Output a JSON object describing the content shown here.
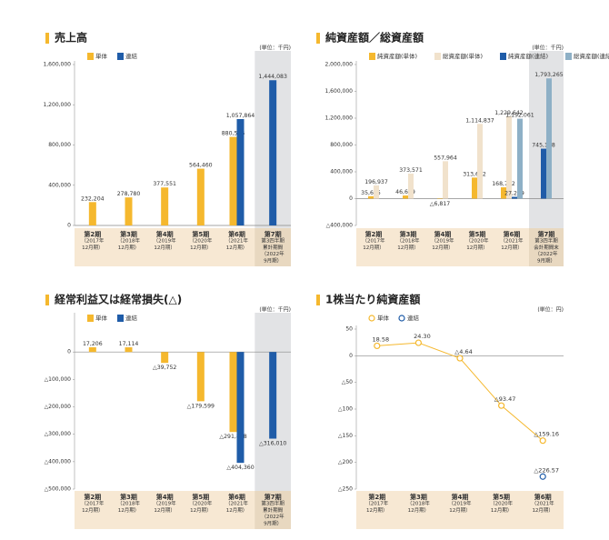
{
  "chart_data": [
    {
      "type": "bar",
      "title": "売上高",
      "unit": "(単位：千円)",
      "categories": [
        [
          "第2期",
          "（2017年",
          "12月期）"
        ],
        [
          "第3期",
          "（2018年",
          "12月期）"
        ],
        [
          "第4期",
          "（2019年",
          "12月期）"
        ],
        [
          "第5期",
          "（2020年",
          "12月期）"
        ],
        [
          "第6期",
          "（2021年",
          "12月期）"
        ],
        [
          "第7期",
          "第3四半期",
          "累計期間",
          "（2022年",
          "9月期）"
        ]
      ],
      "series": [
        {
          "name": "単体",
          "color": "#f5b82e",
          "values": [
            232204,
            278780,
            377551,
            564460,
            880506,
            null
          ],
          "value_labels": [
            "232,204",
            "278,780",
            "377,551",
            "564,460",
            "880,506",
            null
          ]
        },
        {
          "name": "連結",
          "color": "#1f5ca8",
          "values": [
            null,
            null,
            null,
            null,
            1057864,
            1444083
          ],
          "value_labels": [
            null,
            null,
            null,
            null,
            "1,057,864",
            "1,444,083"
          ]
        }
      ],
      "ylim": [
        0,
        1600000
      ],
      "yticks": [
        0,
        {
          "value": 400000,
          "label": "400,000"
        },
        {
          "value": 800000,
          "label": "800,000"
        },
        {
          "value": 1200000,
          "label": "1,200,000"
        },
        {
          "value": 1600000,
          "label": "1,600,000"
        }
      ],
      "highlight_category": 5
    },
    {
      "type": "bar",
      "title": "純資産額／総資産額",
      "unit": "(単位：千円)",
      "categories": [
        [
          "第2期",
          "（2017年",
          "12月期）"
        ],
        [
          "第3期",
          "（2018年",
          "12月期）"
        ],
        [
          "第4期",
          "（2019年",
          "12月期）"
        ],
        [
          "第5期",
          "（2020年",
          "12月期）"
        ],
        [
          "第6期",
          "（2021年",
          "12月期）"
        ],
        [
          "第7期",
          "第3四半期",
          "会計期間末",
          "（2022年",
          "9月期）"
        ]
      ],
      "series": [
        {
          "name": "純資産額(単体)",
          "color": "#f5b82e",
          "values": [
            35675,
            46659,
            -6817,
            313672,
            168702,
            null
          ],
          "value_labels": [
            "35,675",
            "46,659",
            "△6,817",
            "313,672",
            "168,702",
            null
          ]
        },
        {
          "name": "総資産額(単体)",
          "color": "#f1e2cc",
          "values": [
            196937,
            373571,
            557964,
            1114837,
            1229642,
            null
          ],
          "value_labels": [
            "196,937",
            "373,571",
            "557,964",
            "1,114,837",
            "1,229,642",
            null
          ]
        },
        {
          "name": "純資産額(連結)",
          "color": "#1f5ca8",
          "values": [
            null,
            null,
            null,
            null,
            27279,
            745178
          ],
          "value_labels": [
            null,
            null,
            null,
            null,
            "27,279",
            "745,178"
          ]
        },
        {
          "name": "総資産額(連結)",
          "color": "#8eb0c6",
          "values": [
            null,
            null,
            null,
            null,
            1192061,
            1793265
          ],
          "value_labels": [
            null,
            null,
            null,
            null,
            "1,192,061",
            "1,793,265"
          ]
        }
      ],
      "ylim": [
        -400000,
        2000000
      ],
      "yticks": [
        {
          "value": -400000,
          "label": "△400,000"
        },
        0,
        {
          "value": 400000,
          "label": "400,000"
        },
        {
          "value": 800000,
          "label": "800,000"
        },
        {
          "value": 1200000,
          "label": "1,200,000"
        },
        {
          "value": 1600000,
          "label": "1,600,000"
        },
        {
          "value": 2000000,
          "label": "2,000,000"
        }
      ],
      "highlight_category": 5
    },
    {
      "type": "bar",
      "title": "経常利益又は経常損失(△)",
      "unit": "(単位：千円)",
      "categories": [
        [
          "第2期",
          "（2017年",
          "12月期）"
        ],
        [
          "第3期",
          "（2018年",
          "12月期）"
        ],
        [
          "第4期",
          "（2019年",
          "12月期）"
        ],
        [
          "第5期",
          "（2020年",
          "12月期）"
        ],
        [
          "第6期",
          "（2021年",
          "12月期）"
        ],
        [
          "第7期",
          "第3四半期",
          "累計期間",
          "（2022年",
          "9月期）"
        ]
      ],
      "series": [
        {
          "name": "単体",
          "color": "#f5b82e",
          "values": [
            17206,
            17114,
            -39752,
            -179599,
            -291858,
            null
          ],
          "value_labels": [
            "17,206",
            "17,114",
            "△39,752",
            "△179,599",
            "△291,858",
            null
          ]
        },
        {
          "name": "連結",
          "color": "#1f5ca8",
          "values": [
            null,
            null,
            null,
            null,
            -404360,
            -316010
          ],
          "value_labels": [
            null,
            null,
            null,
            null,
            "△404,360",
            "△316,010"
          ]
        }
      ],
      "ylim": [
        -500000,
        130000
      ],
      "yticks": [
        {
          "value": -500000,
          "label": "△500,000"
        },
        {
          "value": -400000,
          "label": "△400,000"
        },
        {
          "value": -300000,
          "label": "△300,000"
        },
        {
          "value": -200000,
          "label": "△200,000"
        },
        {
          "value": -100000,
          "label": "△100,000"
        },
        0
      ],
      "highlight_category": 5
    },
    {
      "type": "line",
      "title": "1株当たり純資産額",
      "unit": "(単位：円)",
      "categories": [
        [
          "第2期",
          "（2017年",
          "12月期）"
        ],
        [
          "第3期",
          "（2018年",
          "12月期）"
        ],
        [
          "第4期",
          "（2019年",
          "12月期）"
        ],
        [
          "第5期",
          "（2020年",
          "12月期）"
        ],
        [
          "第6期",
          "（2021年",
          "12月期）"
        ]
      ],
      "series": [
        {
          "name": "単体",
          "color": "#f5b82e",
          "values": [
            18.58,
            24.3,
            -4.64,
            -93.47,
            -159.16
          ],
          "value_labels": [
            "18.58",
            "24.30",
            "△4.64",
            "△93.47",
            "△159.16"
          ]
        },
        {
          "name": "連結",
          "color": "#1f5ca8",
          "values": [
            null,
            null,
            null,
            null,
            -226.57
          ],
          "value_labels": [
            null,
            null,
            null,
            null,
            "△226.57"
          ]
        }
      ],
      "ylim": [
        -250,
        50
      ],
      "yticks": [
        {
          "value": -250,
          "label": "△250"
        },
        {
          "value": -200,
          "label": "△200"
        },
        {
          "value": -150,
          "label": "△150"
        },
        {
          "value": -100,
          "label": "△100"
        },
        {
          "value": -50,
          "label": "△50"
        },
        0,
        50
      ]
    }
  ]
}
